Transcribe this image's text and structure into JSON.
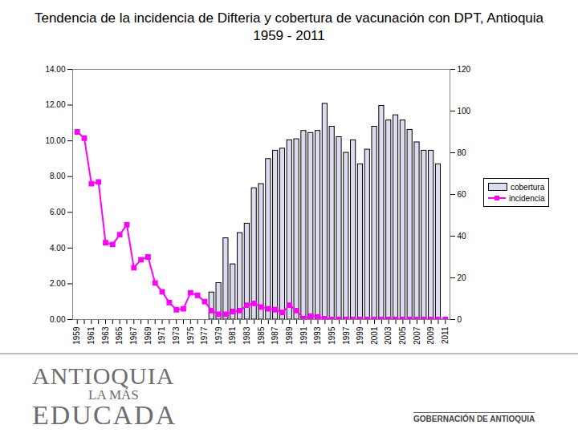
{
  "chart_data": {
    "type": "bar",
    "title": "Tendencia de la incidencia de Difteria y cobertura de vacunación con DPT, Antioquia 1959 - 2011",
    "categories": [
      "1959",
      null,
      "1961",
      null,
      "1963",
      null,
      "1965",
      null,
      "1967",
      null,
      "1969",
      null,
      "1971",
      null,
      "1973",
      null,
      "1975",
      null,
      "1977",
      null,
      "1979",
      null,
      "1981",
      null,
      "1983",
      null,
      "1985",
      null,
      "1987",
      null,
      "1989",
      null,
      "1991",
      null,
      "1993",
      null,
      "1995",
      null,
      "1997",
      null,
      "1999",
      null,
      "2001",
      null,
      "2003",
      null,
      "2005",
      null,
      "2007",
      null,
      "2009",
      null,
      "2011"
    ],
    "series": [
      {
        "name": "cobertura",
        "type": "bar",
        "color": "#dcdcf0",
        "axis": "y2",
        "values": [
          null,
          null,
          null,
          null,
          null,
          null,
          null,
          null,
          null,
          null,
          null,
          null,
          null,
          null,
          null,
          null,
          null,
          null,
          null,
          13,
          17.5,
          39,
          26.5,
          41.5,
          46,
          63,
          65,
          77,
          81,
          82,
          86,
          86.5,
          90.5,
          89.5,
          90.5,
          103.5,
          92.5,
          87.5,
          80,
          86,
          74.5,
          81.5,
          92.5,
          102.5,
          95.5,
          98,
          95.5,
          91,
          85,
          81,
          81,
          74.5,
          null
        ]
      },
      {
        "name": "incidencia",
        "type": "line",
        "color": "#ff00ff",
        "marker": "square",
        "line_style": "solid",
        "values": [
          10.5,
          10.15,
          7.6,
          7.7,
          4.3,
          4.2,
          4.75,
          5.3,
          2.9,
          3.35,
          3.5,
          2.05,
          1.55,
          0.95,
          0.55,
          0.6,
          1.5,
          1.35,
          1.0,
          0.5,
          0.3,
          0.3,
          0.45,
          0.5,
          0.8,
          0.9,
          0.7,
          0.6,
          0.55,
          0.4,
          0.8,
          0.5,
          0.05,
          0.2,
          0.15,
          0.05,
          0,
          0,
          0,
          0,
          0,
          0,
          0,
          0,
          0,
          0,
          0,
          0,
          0,
          0,
          0,
          0,
          0
        ]
      }
    ],
    "ylim": [
      0,
      14
    ],
    "yticks": [
      {
        "value": 0,
        "label": "0.00"
      },
      {
        "value": 2,
        "label": "2.00"
      },
      {
        "value": 4,
        "label": "4.00"
      },
      {
        "value": 6,
        "label": "6.00"
      },
      {
        "value": 8,
        "label": "8.00"
      },
      {
        "value": 10,
        "label": "10.00"
      },
      {
        "value": 12,
        "label": "12.00"
      },
      {
        "value": 14,
        "label": "14.00"
      }
    ],
    "y2lim": [
      0,
      120
    ],
    "y2ticks": [
      0,
      20,
      40,
      60,
      80,
      100,
      120
    ],
    "grid": false,
    "legend": "right"
  },
  "footer": {
    "left": [
      "ANTIOQUIA",
      "LA MÁS",
      "EDUCADA"
    ],
    "right": "GOBERNACIÓN DE ANTIOQUIA"
  }
}
